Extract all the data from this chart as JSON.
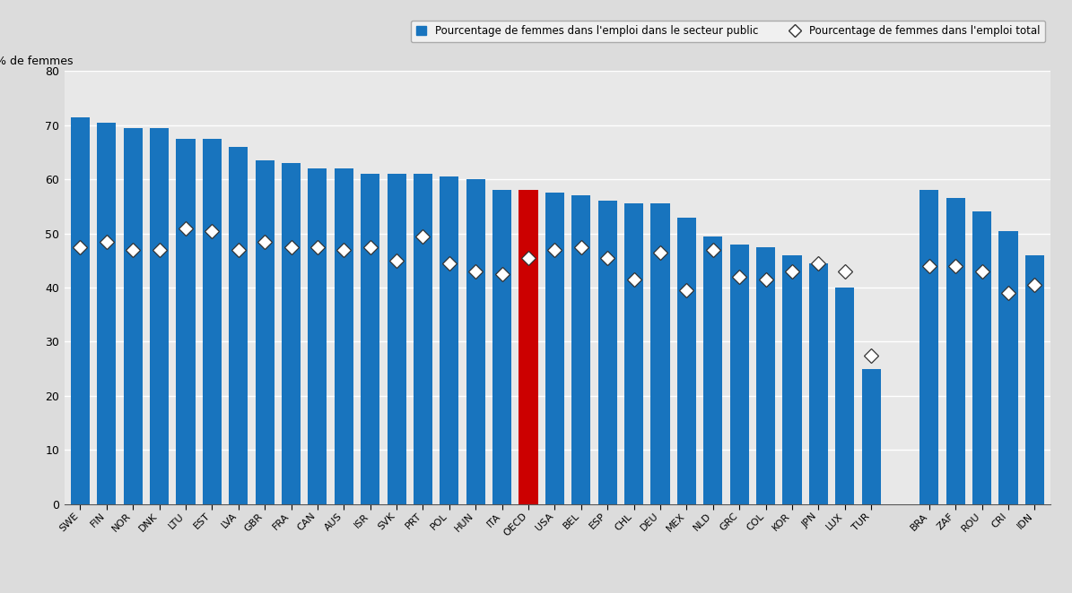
{
  "categories": [
    "SWE",
    "FIN",
    "NOR",
    "DNK",
    "LTU",
    "EST",
    "LVA",
    "GBR",
    "FRA",
    "CAN",
    "AUS",
    "ISR",
    "SVK",
    "PRT",
    "POL",
    "HUN",
    "ITA",
    "OECD",
    "USA",
    "BEL",
    "ESP",
    "CHL",
    "DEU",
    "MEX",
    "NLD",
    "GRC",
    "COL",
    "KOR",
    "JPN",
    "LUX",
    "TUR",
    "BRA",
    "ZAF",
    "ROU",
    "CRI",
    "IDN"
  ],
  "bar_values": [
    71.5,
    70.5,
    69.5,
    69.5,
    67.5,
    67.5,
    66.0,
    63.5,
    63.0,
    62.0,
    62.0,
    61.0,
    61.0,
    61.0,
    60.5,
    60.0,
    58.0,
    58.0,
    57.5,
    57.0,
    56.0,
    55.5,
    55.5,
    53.0,
    49.5,
    48.0,
    47.5,
    46.0,
    44.5,
    40.0,
    25.0,
    58.0,
    56.5,
    54.0,
    50.5,
    46.0
  ],
  "diamond_values": [
    47.5,
    48.5,
    47.0,
    47.0,
    51.0,
    50.5,
    47.0,
    48.5,
    47.5,
    47.5,
    47.0,
    47.5,
    45.0,
    49.5,
    44.5,
    43.0,
    42.5,
    45.5,
    47.0,
    47.5,
    45.5,
    41.5,
    46.5,
    39.5,
    47.0,
    42.0,
    41.5,
    43.0,
    44.5,
    43.0,
    27.5,
    44.0,
    44.0,
    43.0,
    39.0,
    40.5
  ],
  "bar_colors": [
    "#1874BE",
    "#1874BE",
    "#1874BE",
    "#1874BE",
    "#1874BE",
    "#1874BE",
    "#1874BE",
    "#1874BE",
    "#1874BE",
    "#1874BE",
    "#1874BE",
    "#1874BE",
    "#1874BE",
    "#1874BE",
    "#1874BE",
    "#1874BE",
    "#1874BE",
    "#CC0000",
    "#1874BE",
    "#1874BE",
    "#1874BE",
    "#1874BE",
    "#1874BE",
    "#1874BE",
    "#1874BE",
    "#1874BE",
    "#1874BE",
    "#1874BE",
    "#1874BE",
    "#1874BE",
    "#1874BE",
    "#1874BE",
    "#1874BE",
    "#1874BE",
    "#1874BE",
    "#1874BE"
  ],
  "gap_start_label": "BRA",
  "ylabel": "% de femmes",
  "ylim": [
    0,
    80
  ],
  "yticks": [
    0,
    10,
    20,
    30,
    40,
    50,
    60,
    70,
    80
  ],
  "legend_bar_label": "Pourcentage de femmes dans l'emploi dans le secteur public",
  "legend_diamond_label": "Pourcentage de femmes dans l'emploi total",
  "background_color": "#DCDCDC",
  "plot_background": "#E8E8E8",
  "bar_color_blue": "#1874BE",
  "bar_color_red": "#CC0000",
  "diamond_facecolor": "#FFFFFF",
  "diamond_edgecolor": "#333333",
  "grid_color": "#FFFFFF",
  "spine_color": "#555555"
}
